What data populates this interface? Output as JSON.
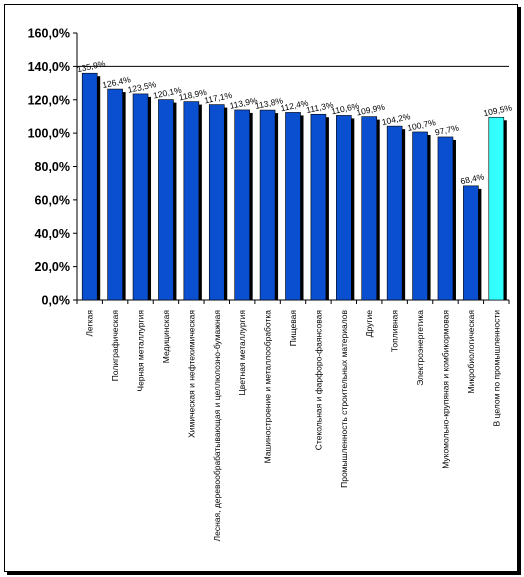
{
  "chart_data": {
    "type": "bar",
    "categories": [
      "Легкая",
      "Полиграфическая",
      "Черная металлургия",
      "Медицинская",
      "Химическая и нефтехимическая",
      "Лесная, деревообрабатывающая и целлюлозно-бумажная",
      "Цветная металлургия",
      "Машиностроение и металлообработка",
      "Пищевая",
      "Стекольная и фарфоро-фаянсовая",
      "Промышленность строительных материалов",
      "Другие",
      "Топливная",
      "Электроэнергетика",
      "Мукомольно-крупяная и комбикормовая",
      "Микробиологическая",
      "В целом по промышленности"
    ],
    "values": [
      135.9,
      126.4,
      123.5,
      120.1,
      118.9,
      117.1,
      113.9,
      113.8,
      112.4,
      111.3,
      110.6,
      109.9,
      104.2,
      100.7,
      97.7,
      68.4,
      109.5
    ],
    "data_labels": [
      "135,9%",
      "126,4%",
      "123,5%",
      "120,1%",
      "118,9%",
      "117,1%",
      "113,9%",
      "113,8%",
      "112,4%",
      "111,3%",
      "110,6%",
      "109,9%",
      "104,2%",
      "100,7%",
      "97,7%",
      "68,4%",
      "109,5%"
    ],
    "highlight_index": 16,
    "yticks": [
      "0,0%",
      "20,0%",
      "40,0%",
      "60,0%",
      "80,0%",
      "100,0%",
      "120,0%",
      "140,0%",
      "160,0%"
    ],
    "ylim": [
      0,
      160
    ],
    "ytick_step": 20,
    "grid_lines": [
      140
    ],
    "title": "",
    "xlabel": "",
    "ylabel": "",
    "colors": {
      "bar": "#0b4fd1",
      "bar_highlight": "#33ffff",
      "bar_shadow": "#000000",
      "border": "#000000"
    }
  }
}
